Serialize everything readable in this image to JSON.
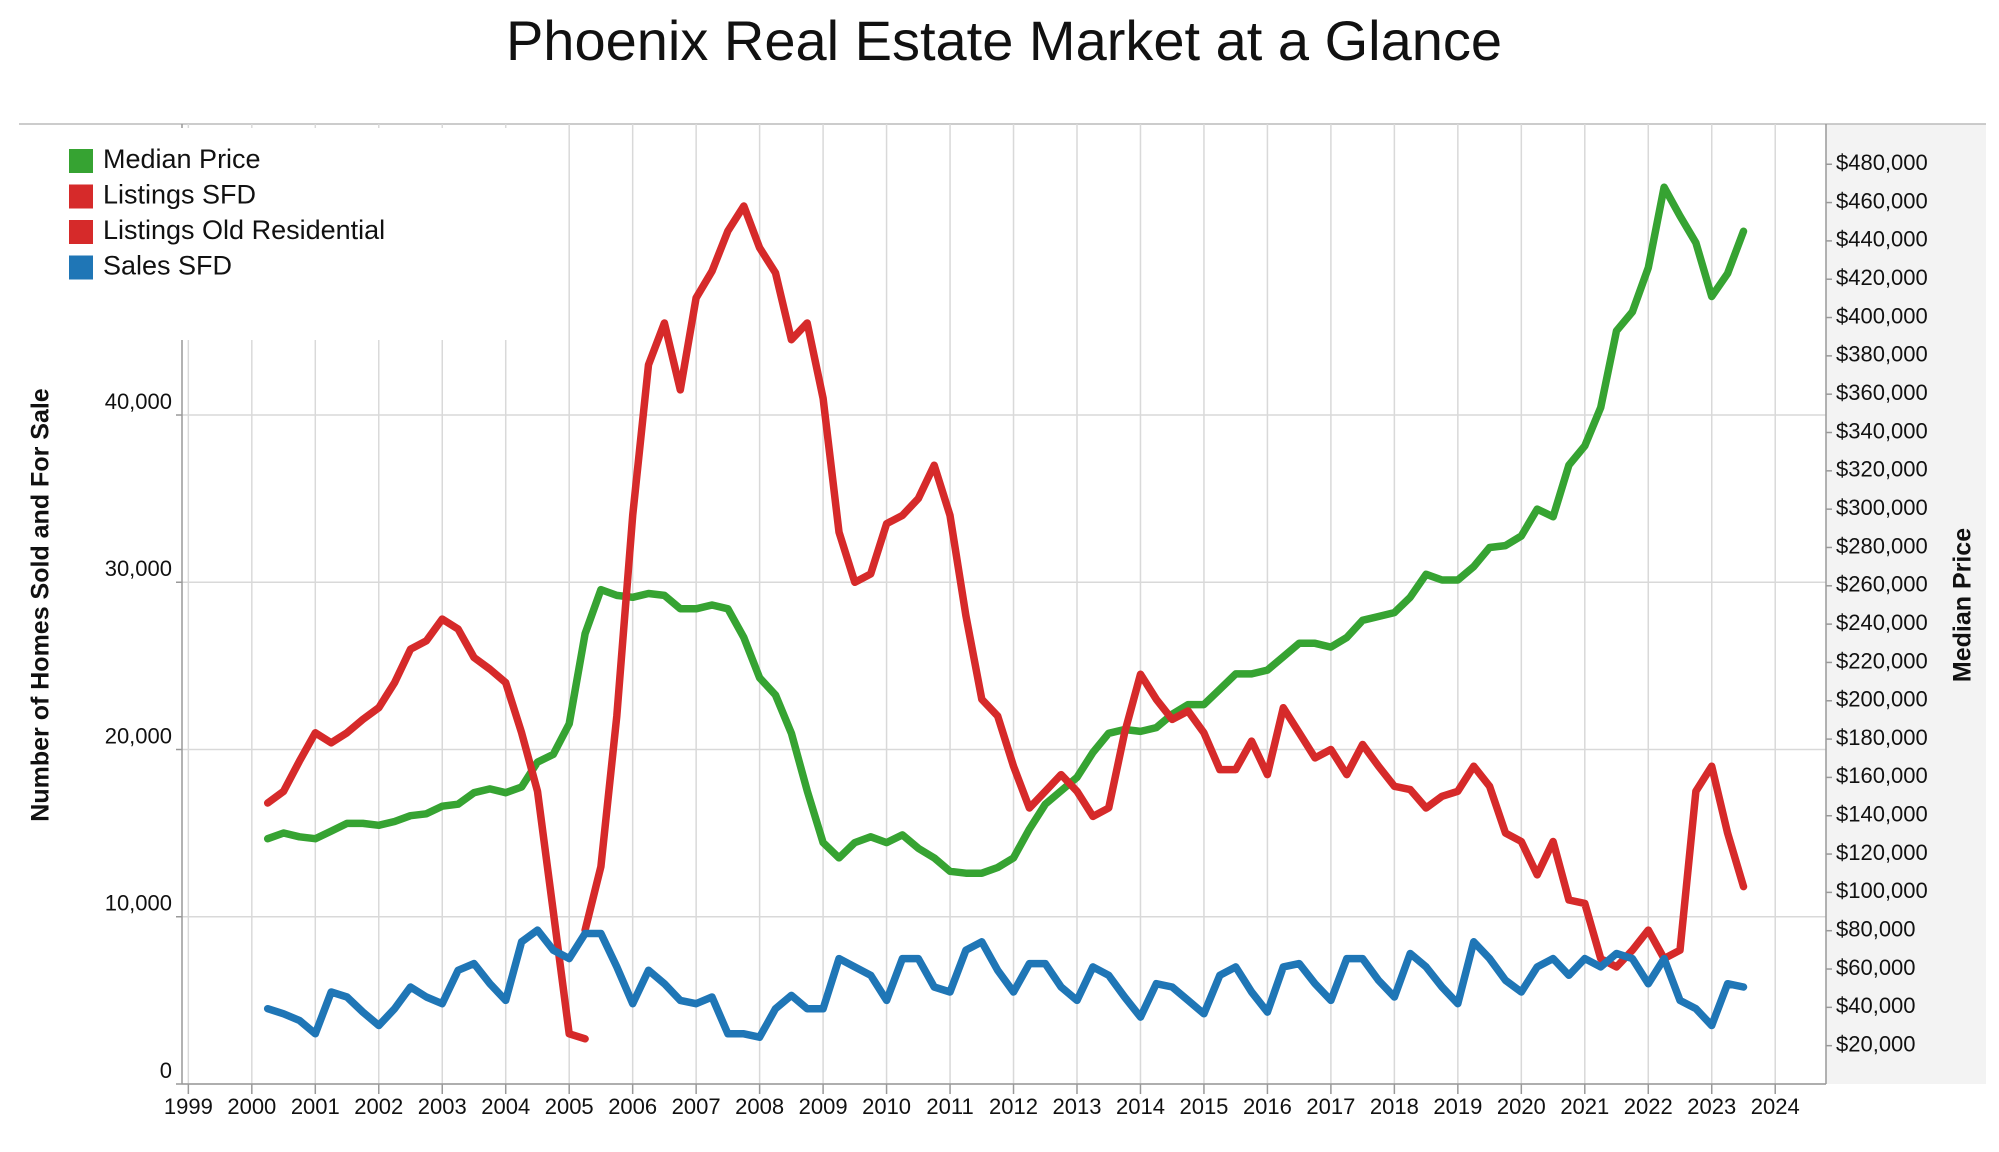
{
  "chart_data": {
    "type": "line",
    "title": "Phoenix Real Estate Market at a Glance",
    "yaxis_label": "Number of Homes Sold and For Sale",
    "y2axis_label": "Median Price",
    "legend": "upper left",
    "grid": true,
    "xlim": [
      1998.9,
      2024.8
    ],
    "xticks": [
      1999,
      2000,
      2001,
      2002,
      2003,
      2004,
      2005,
      2006,
      2007,
      2008,
      2009,
      2010,
      2011,
      2012,
      2013,
      2014,
      2015,
      2016,
      2017,
      2018,
      2019,
      2020,
      2021,
      2022,
      2023,
      2024
    ],
    "ylim": [
      0,
      57400
    ],
    "yticks": [
      0,
      {
        "value": 10000,
        "label": "10,000"
      },
      {
        "value": 20000,
        "label": "20,000"
      },
      {
        "value": 30000,
        "label": "30,000"
      },
      {
        "value": 40000,
        "label": "40,000"
      }
    ],
    "y2lim": [
      0,
      501000
    ],
    "y2ticks": [
      {
        "value": 20000,
        "label": "$20,000"
      },
      {
        "value": 40000,
        "label": "$40,000"
      },
      {
        "value": 60000,
        "label": "$60,000"
      },
      {
        "value": 80000,
        "label": "$80,000"
      },
      {
        "value": 100000,
        "label": "$100,000"
      },
      {
        "value": 120000,
        "label": "$120,000"
      },
      {
        "value": 140000,
        "label": "$140,000"
      },
      {
        "value": 160000,
        "label": "$160,000"
      },
      {
        "value": 180000,
        "label": "$180,000"
      },
      {
        "value": 200000,
        "label": "$200,000"
      },
      {
        "value": 220000,
        "label": "$220,000"
      },
      {
        "value": 240000,
        "label": "$240,000"
      },
      {
        "value": 260000,
        "label": "$260,000"
      },
      {
        "value": 280000,
        "label": "$280,000"
      },
      {
        "value": 300000,
        "label": "$300,000"
      },
      {
        "value": 320000,
        "label": "$320,000"
      },
      {
        "value": 340000,
        "label": "$340,000"
      },
      {
        "value": 360000,
        "label": "$360,000"
      },
      {
        "value": 380000,
        "label": "$380,000"
      },
      {
        "value": 400000,
        "label": "$400,000"
      },
      {
        "value": 420000,
        "label": "$420,000"
      },
      {
        "value": 440000,
        "label": "$440,000"
      },
      {
        "value": 460000,
        "label": "$460,000"
      },
      {
        "value": 480000,
        "label": "$480,000"
      }
    ],
    "x": [
      2000.25,
      2000.5,
      2000.75,
      2001.0,
      2001.25,
      2001.5,
      2001.75,
      2002.0,
      2002.25,
      2002.5,
      2002.75,
      2003.0,
      2003.25,
      2003.5,
      2003.75,
      2004.0,
      2004.25,
      2004.5,
      2004.75,
      2005.0,
      2005.25,
      2005.5,
      2005.75,
      2006.0,
      2006.25,
      2006.5,
      2006.75,
      2007.0,
      2007.25,
      2007.5,
      2007.75,
      2008.0,
      2008.25,
      2008.5,
      2008.75,
      2009.0,
      2009.25,
      2009.5,
      2009.75,
      2010.0,
      2010.25,
      2010.5,
      2010.75,
      2011.0,
      2011.25,
      2011.5,
      2011.75,
      2012.0,
      2012.25,
      2012.5,
      2012.75,
      2013.0,
      2013.25,
      2013.5,
      2013.75,
      2014.0,
      2014.25,
      2014.5,
      2014.75,
      2015.0,
      2015.25,
      2015.5,
      2015.75,
      2016.0,
      2016.25,
      2016.5,
      2016.75,
      2017.0,
      2017.25,
      2017.5,
      2017.75,
      2018.0,
      2018.25,
      2018.5,
      2018.75,
      2019.0,
      2019.25,
      2019.5,
      2019.75,
      2020.0,
      2020.25,
      2020.5,
      2020.75,
      2021.0,
      2021.25,
      2021.5,
      2021.75,
      2022.0,
      2022.25,
      2022.5,
      2022.75,
      2023.0,
      2023.25,
      2023.5
    ],
    "series": [
      {
        "name": "Median Price",
        "color": "#36a332",
        "axis": "y2",
        "values": [
          128000,
          131000,
          129000,
          128000,
          132000,
          136000,
          136000,
          135000,
          137000,
          140000,
          141000,
          145000,
          146000,
          152000,
          154000,
          152000,
          155000,
          168000,
          172000,
          188000,
          235000,
          258000,
          255000,
          254000,
          256000,
          255000,
          248000,
          248000,
          250000,
          248000,
          233000,
          212000,
          203000,
          183000,
          153000,
          126000,
          118000,
          126000,
          129000,
          126000,
          130000,
          123000,
          118000,
          111000,
          110000,
          110000,
          113000,
          118000,
          133000,
          146000,
          153000,
          160000,
          173000,
          183000,
          185000,
          184000,
          186000,
          193000,
          198000,
          198000,
          206000,
          214000,
          214000,
          216000,
          223000,
          230000,
          230000,
          228000,
          233000,
          242000,
          244000,
          246000,
          254000,
          266000,
          263000,
          263000,
          270000,
          280000,
          281000,
          286000,
          300000,
          296000,
          323000,
          333000,
          353000,
          393000,
          403000,
          426000,
          468000,
          453000,
          439000,
          411000,
          423000,
          445000
        ]
      },
      {
        "name": "Listings SFD",
        "color": "#d62a2a",
        "values": [
          16800,
          17500,
          19300,
          21000,
          20400,
          21000,
          21800,
          22500,
          24000,
          26000,
          26500,
          27800,
          27200,
          25500,
          24800,
          24000,
          21000,
          17500,
          10300,
          3000,
          2700,
          null,
          null,
          null,
          null,
          null,
          null,
          null,
          null,
          null,
          null,
          null,
          null,
          null,
          null,
          null,
          null,
          null,
          null,
          null,
          null,
          null,
          null,
          null,
          null,
          null,
          null,
          null,
          null,
          null,
          null,
          null,
          null,
          null,
          null,
          null,
          null,
          null,
          null,
          null,
          null,
          null,
          null,
          null,
          null,
          null,
          null,
          null,
          null,
          null,
          null,
          null,
          null,
          null,
          null,
          null,
          null,
          null,
          null,
          null,
          null,
          null,
          null,
          null,
          null,
          null,
          null,
          null,
          null,
          null,
          null,
          null,
          null,
          null
        ]
      },
      {
        "name": "Listings Old Residential",
        "color": "#d62a2a",
        "values": [
          null,
          null,
          null,
          null,
          null,
          null,
          null,
          null,
          null,
          null,
          null,
          null,
          null,
          null,
          null,
          null,
          null,
          null,
          null,
          null,
          9200,
          13000,
          22000,
          34000,
          43000,
          45500,
          41500,
          47000,
          48600,
          51000,
          52500,
          50000,
          48500,
          44500,
          45500,
          41000,
          33000,
          30000,
          30500,
          33500,
          34000,
          35000,
          37000,
          34000,
          28000,
          23000,
          22000,
          19000,
          16500,
          17500,
          18500,
          17500,
          16000,
          16500,
          21000,
          24500,
          23000,
          21800,
          22300,
          21000,
          18800,
          18800,
          20500,
          18500,
          22500,
          21000,
          19500,
          20000,
          18500,
          20300,
          19000,
          17800,
          17600,
          16500,
          17200,
          17500,
          19000,
          17800,
          15000,
          14500,
          12500,
          14500,
          11000,
          10800,
          7500,
          7000,
          8000,
          9200,
          7500,
          8000,
          17500,
          19000,
          15000,
          11800
        ]
      },
      {
        "name": "Sales SFD",
        "color": "#1f76b6",
        "values": [
          4500,
          4200,
          3800,
          3000,
          5500,
          5200,
          4300,
          3500,
          4500,
          5800,
          5200,
          4800,
          6800,
          7200,
          6000,
          5000,
          8500,
          9200,
          8000,
          7500,
          9000,
          9000,
          7000,
          4800,
          6800,
          6000,
          5000,
          4800,
          5200,
          3000,
          3000,
          2800,
          4500,
          5300,
          4500,
          4500,
          7500,
          7000,
          6500,
          5000,
          7500,
          7500,
          5800,
          5500,
          8000,
          8500,
          6800,
          5500,
          7200,
          7200,
          5800,
          5000,
          7000,
          6500,
          5200,
          4000,
          6000,
          5800,
          5000,
          4200,
          6500,
          7000,
          5500,
          4300,
          7000,
          7200,
          6000,
          5000,
          7500,
          7500,
          6200,
          5200,
          7800,
          7000,
          5800,
          4800,
          8500,
          7500,
          6200,
          5500,
          7000,
          7500,
          6500,
          7500,
          7000,
          7800,
          7500,
          6000,
          7500,
          5000,
          4500,
          3500,
          6000,
          5800
        ]
      }
    ]
  }
}
